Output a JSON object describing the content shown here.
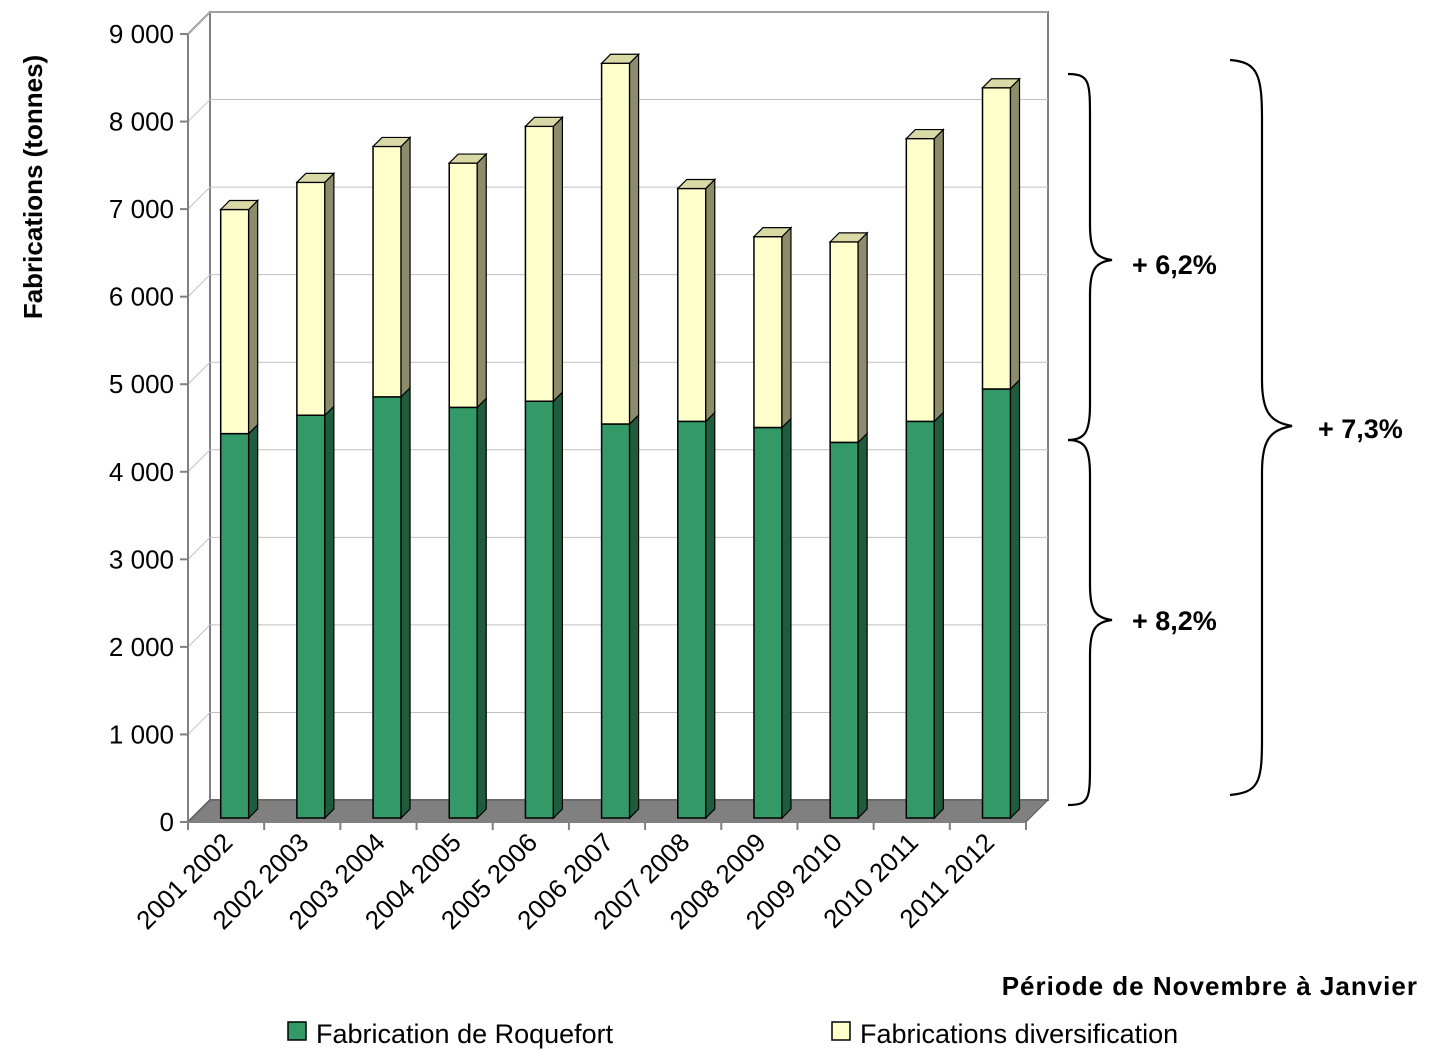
{
  "chart_data": {
    "type": "bar",
    "stacked": true,
    "categories": [
      "2001 2002",
      "2002 2003",
      "2003 2004",
      "2004 2005",
      "2005 2006",
      "2006 2007",
      "2007 2008",
      "2008 2009",
      "2009 2010",
      "2010 2011",
      "2011 2012"
    ],
    "series": [
      {
        "name": "Fabrication de Roquefort",
        "values": [
          4390,
          4600,
          4810,
          4690,
          4760,
          4500,
          4530,
          4460,
          4290,
          4530,
          4900
        ],
        "color": "#339966"
      },
      {
        "name": "Fabrications diversification",
        "values": [
          2560,
          2660,
          2860,
          2790,
          3140,
          4120,
          2660,
          2180,
          2290,
          3230,
          3440
        ],
        "color": "#ffffcc"
      }
    ],
    "ylabel": "Fabrications (tonnes)",
    "xlabel": "Période de Novembre à Janvier",
    "ylim": [
      0,
      9000
    ],
    "yticks": [
      "0",
      "1 000",
      "2 000",
      "3 000",
      "4 000",
      "5 000",
      "6 000",
      "7 000",
      "8 000",
      "9 000"
    ],
    "grid": true,
    "legend": "bottom",
    "annotations": [
      {
        "text": "+ 6,2%"
      },
      {
        "text": "+ 8,2%"
      },
      {
        "text": "+ 7,3%"
      }
    ]
  }
}
